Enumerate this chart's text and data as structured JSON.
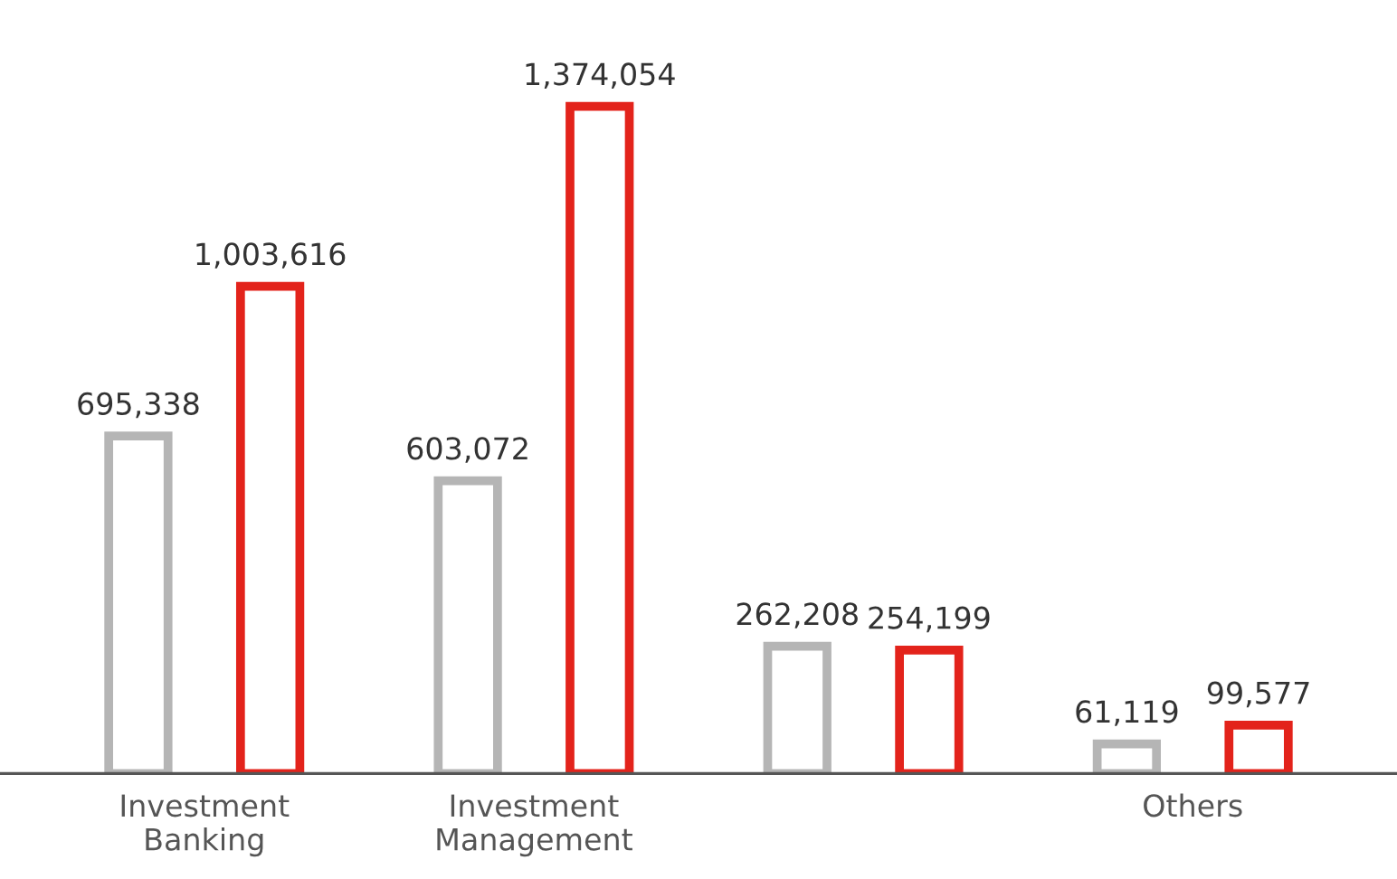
{
  "chart_data": {
    "type": "bar",
    "categories": [
      "Investment\nBanking",
      "Investment\nManagement",
      null,
      "Others"
    ],
    "series": [
      {
        "color": "#b5b5b5",
        "values": [
          695338,
          603072,
          262208,
          61119
        ],
        "value_labels": [
          "695,338",
          "603,072",
          "262,208",
          "61,119"
        ]
      },
      {
        "color": "#e3231b",
        "values": [
          1003616,
          1374054,
          254199,
          99577
        ],
        "value_labels": [
          "1,003,616",
          "1,374,054",
          "254,199",
          "99,577"
        ]
      }
    ],
    "grid": false,
    "legend": false
  }
}
